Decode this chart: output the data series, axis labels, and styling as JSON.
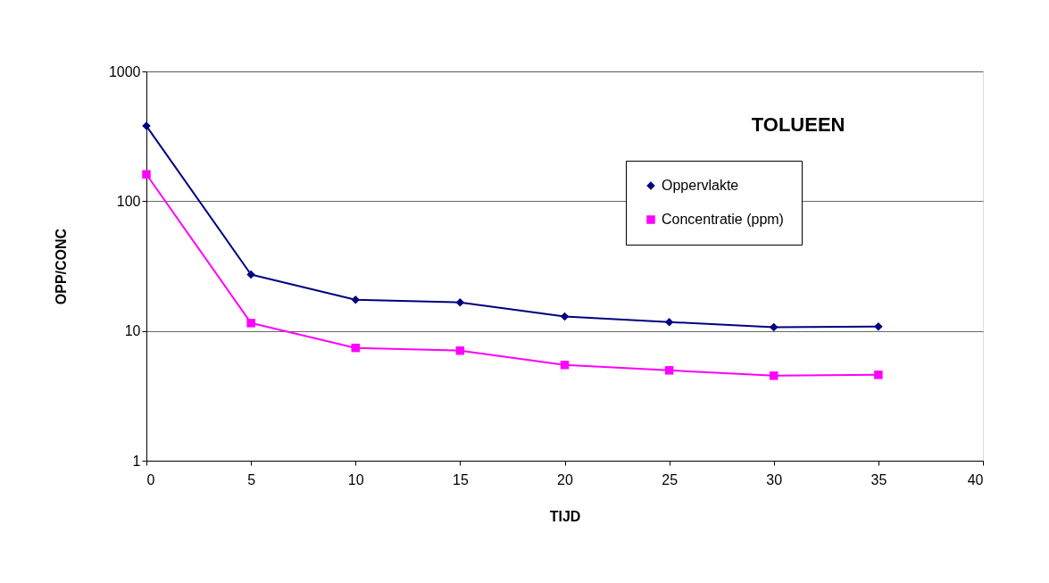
{
  "chart_data": {
    "type": "line",
    "title": "TOLUEEN",
    "xlabel": "TIJD",
    "ylabel": "OPP/CONC",
    "x": [
      0,
      5,
      10,
      15,
      20,
      25,
      30,
      35
    ],
    "series": [
      {
        "name": "Oppervlakte",
        "color": "#000080",
        "marker": "diamond",
        "values": [
          380,
          27.2,
          17.4,
          16.6,
          12.9,
          11.7,
          10.7,
          10.8
        ]
      },
      {
        "name": "Concentratie (ppm)",
        "color": "#ff00ff",
        "marker": "square",
        "values": [
          161,
          11.5,
          7.4,
          7.05,
          5.47,
          4.97,
          4.52,
          4.59
        ]
      }
    ],
    "xlim": [
      0,
      40
    ],
    "xticks": [
      0,
      5,
      10,
      15,
      20,
      25,
      30,
      35,
      40
    ],
    "ylim": [
      1,
      1000
    ],
    "yticks": [
      1,
      10,
      100,
      1000
    ],
    "log": "y",
    "grid": "y",
    "legend": "top right",
    "line_style": "solid"
  }
}
